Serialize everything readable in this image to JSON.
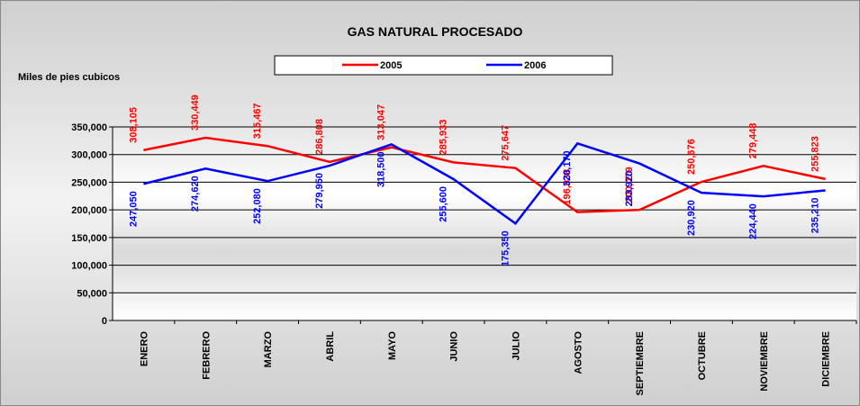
{
  "chart_data": {
    "type": "line",
    "title": "GAS NATURAL PROCESADO",
    "y_axis_label": "Miles de pies cubicos",
    "categories": [
      "ENERO",
      "FEBRERO",
      "MARZO",
      "ABRIL",
      "MAYO",
      "JUNIO",
      "JULIO",
      "AGOSTO",
      "SEPTIEMBRE",
      "OCTUBRE",
      "NOVIEMBRE",
      "DICIEMBRE"
    ],
    "series": [
      {
        "name": "2005",
        "color": "#ff0000",
        "values": [
          308105,
          330449,
          315467,
          286808,
          313047,
          285933,
          275647,
          196038,
          200079,
          250676,
          279448,
          255823
        ],
        "value_labels": [
          "308,105",
          "330,449",
          "315,467",
          "286,808",
          "313,047",
          "285,933",
          "275,647",
          "196,038",
          "200,079",
          "250,676",
          "279,448",
          "255,823"
        ]
      },
      {
        "name": "2006",
        "color": "#0000ff",
        "values": [
          247050,
          274620,
          252080,
          279950,
          318500,
          255600,
          175350,
          320170,
          283920,
          230920,
          224440,
          235210
        ],
        "value_labels": [
          "247,050",
          "274,620",
          "252,080",
          "279,950",
          "318,500",
          "255,600",
          "175,350",
          "320,170",
          "283,920",
          "230,920",
          "224,440",
          "235,210"
        ]
      }
    ],
    "ylim": [
      0,
      350000
    ],
    "yticks": [
      0,
      {
        "value": 50000,
        "label": "50,000"
      },
      {
        "value": 100000,
        "label": "100,000"
      },
      {
        "value": 150000,
        "label": "150,000"
      },
      {
        "value": 200000,
        "label": "200,000"
      },
      {
        "value": 250000,
        "label": "250,000"
      },
      {
        "value": 300000,
        "label": "300,000"
      },
      {
        "value": 350000,
        "label": "350,000"
      }
    ],
    "grid": true,
    "legend": "top"
  }
}
